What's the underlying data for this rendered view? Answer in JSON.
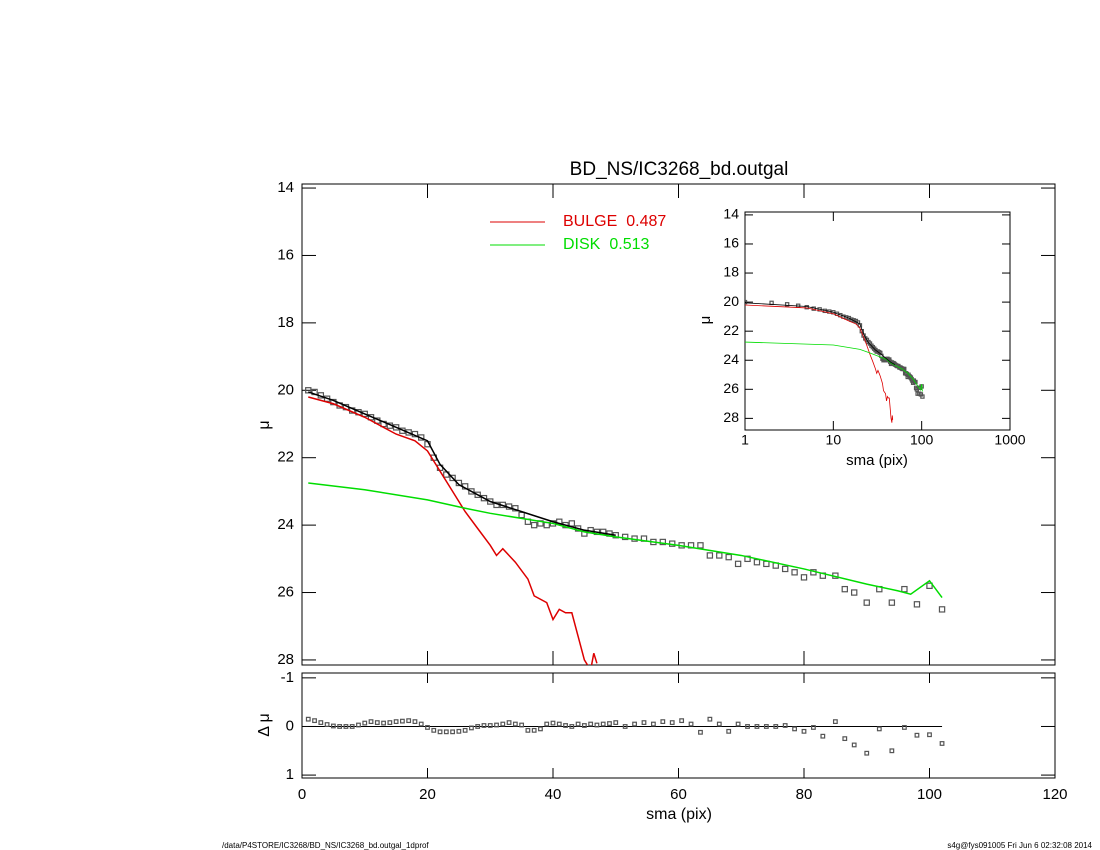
{
  "chart_data": [
    {
      "type": "line",
      "title": "BD_NS/IC3268_bd.outgal",
      "ylabel": "μ",
      "xlim": [
        0,
        120
      ],
      "xticks": [
        0,
        20,
        40,
        60,
        80,
        100,
        120
      ],
      "ylim": [
        13.88,
        28.15
      ],
      "yticks": [
        14,
        16,
        18,
        20,
        22,
        24,
        26,
        28
      ],
      "series": [
        {
          "color": "#555555",
          "marker": "square",
          "x": [
            1,
            2,
            3,
            4,
            5,
            6,
            7,
            8,
            9,
            10,
            11,
            12,
            13,
            14,
            15,
            16,
            17,
            18,
            19,
            20,
            21,
            22,
            23,
            24,
            25,
            26,
            27,
            28,
            29,
            30,
            31,
            32,
            33,
            34,
            35,
            36,
            37,
            38,
            39,
            40,
            41,
            42,
            43,
            44,
            45,
            46,
            47,
            48,
            49,
            50,
            51.5,
            53,
            54.5,
            56,
            57.5,
            59,
            60.5,
            62,
            63.5,
            65,
            66.5,
            68,
            69.5,
            71,
            72.5,
            74,
            75.5,
            77,
            78.5,
            80,
            81.5,
            83,
            85,
            86.5,
            88,
            90,
            92,
            94,
            96,
            98,
            100,
            102
          ],
          "values": [
            20.0,
            20.05,
            20.15,
            20.25,
            20.35,
            20.45,
            20.5,
            20.6,
            20.65,
            20.7,
            20.8,
            20.9,
            21.0,
            21.05,
            21.1,
            21.2,
            21.25,
            21.3,
            21.4,
            21.6,
            22.0,
            22.3,
            22.5,
            22.6,
            22.75,
            22.85,
            23.0,
            23.1,
            23.2,
            23.3,
            23.4,
            23.4,
            23.45,
            23.5,
            23.7,
            23.9,
            24.0,
            23.95,
            24.0,
            23.95,
            23.9,
            24.0,
            23.95,
            24.1,
            24.25,
            24.15,
            24.2,
            24.2,
            24.25,
            24.3,
            24.35,
            24.4,
            24.4,
            24.5,
            24.5,
            24.55,
            24.6,
            24.6,
            24.6,
            24.9,
            24.9,
            24.95,
            25.15,
            25.0,
            25.1,
            25.15,
            25.2,
            25.3,
            25.4,
            25.55,
            25.4,
            25.5,
            25.5,
            25.9,
            26.0,
            26.3,
            25.9,
            26.3,
            25.9,
            26.35,
            25.8,
            26.5
          ]
        },
        {
          "name": "BULGE",
          "fraction": 0.487,
          "color": "#dd0000",
          "x": [
            1,
            5,
            10,
            15,
            18,
            20,
            22,
            24,
            26,
            28,
            30,
            31,
            32,
            33,
            34,
            36,
            37,
            39,
            40,
            41,
            42,
            43,
            44,
            45,
            46,
            46.5,
            47
          ],
          "values": [
            20.2,
            20.4,
            20.8,
            21.3,
            21.5,
            21.8,
            22.4,
            23.0,
            23.6,
            24.1,
            24.6,
            24.9,
            24.7,
            24.9,
            25.1,
            25.6,
            26.1,
            26.3,
            26.8,
            26.5,
            26.6,
            26.6,
            27.3,
            28.0,
            28.3,
            27.8,
            28.1
          ]
        },
        {
          "name": "DISK",
          "fraction": 0.513,
          "color": "#00dd00",
          "x": [
            1,
            10,
            20,
            26,
            30,
            40,
            45,
            50,
            60,
            70,
            80,
            90,
            95,
            97,
            100,
            102
          ],
          "values": [
            22.75,
            22.95,
            23.25,
            23.5,
            23.65,
            23.95,
            24.2,
            24.35,
            24.6,
            24.9,
            25.3,
            25.75,
            25.95,
            26.05,
            25.65,
            26.15
          ]
        },
        {
          "color": "#000000",
          "x": [
            1,
            5,
            10,
            15,
            20,
            22,
            25,
            30,
            35,
            40,
            45,
            50
          ],
          "values": [
            20.05,
            20.3,
            20.7,
            21.1,
            21.5,
            22.2,
            22.8,
            23.3,
            23.6,
            23.9,
            24.15,
            24.3
          ]
        }
      ]
    },
    {
      "type": "scatter",
      "xlabel": "sma (pix)",
      "ylabel": "Δ μ",
      "ylim": [
        -1.1,
        1.06
      ],
      "yticks": [
        -1,
        0,
        1
      ],
      "color": "#555555",
      "values": [
        -0.15,
        -0.12,
        -0.08,
        -0.04,
        -0.01,
        0,
        0,
        0,
        -0.03,
        -0.07,
        -0.1,
        -0.08,
        -0.07,
        -0.08,
        -0.1,
        -0.11,
        -0.12,
        -0.1,
        -0.05,
        0.02,
        0.08,
        0.11,
        0.11,
        0.11,
        0.1,
        0.08,
        0.03,
        0,
        -0.02,
        -0.02,
        -0.03,
        -0.05,
        -0.08,
        -0.05,
        -0.03,
        0.08,
        0.08,
        0.05,
        -0.05,
        -0.07,
        -0.05,
        -0.02,
        0,
        -0.05,
        -0.02,
        -0.05,
        -0.03,
        -0.05,
        -0.06,
        -0.08,
        0,
        -0.05,
        -0.08,
        -0.05,
        -0.1,
        -0.08,
        -0.12,
        -0.05,
        0.12,
        -0.15,
        -0.05,
        0.1,
        -0.05,
        0,
        0,
        0,
        0,
        -0.02,
        0.05,
        0.1,
        0.02,
        0.2,
        -0.1,
        0.25,
        0.38,
        0.55,
        0.05,
        0.5,
        0.02,
        0.18,
        0.17,
        0.35
      ]
    },
    {
      "type": "line",
      "xlabel": "sma (pix)",
      "ylabel": "μ",
      "log_x": true,
      "xlim": [
        1,
        1000
      ],
      "xticks": [
        1,
        10,
        100,
        1000
      ],
      "ylim": [
        13.8,
        28.8
      ],
      "yticks": [
        14,
        16,
        18,
        20,
        22,
        24,
        26,
        28
      ]
    }
  ],
  "footer": {
    "path": "/data/P4STORE/IC3268/BD_NS/IC3268_bd.outgal_1dprof",
    "stamp": "s4g@fys091005  Fri Jun  6 02:32:08 2014"
  }
}
